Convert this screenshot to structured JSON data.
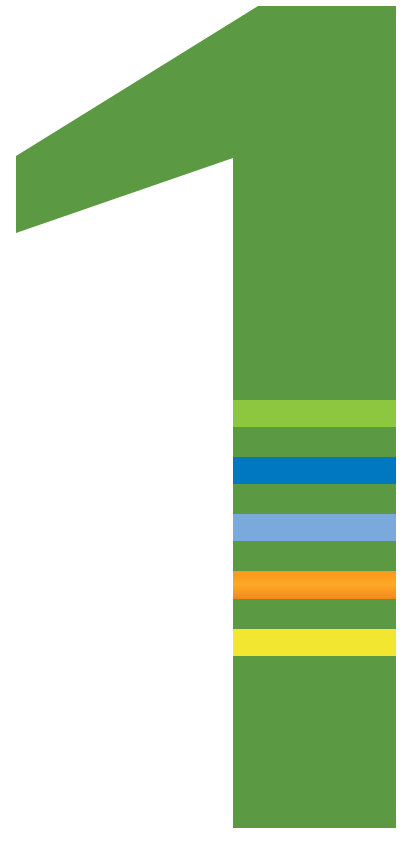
{
  "graphic": {
    "icon": "numeral-one-icon",
    "colors": {
      "background": "#ffffff",
      "numeral": "#5b9a42",
      "stripes": [
        "#8dc63f",
        "#0078c1",
        "#7aaadc",
        "#f7941d",
        "#f2e630"
      ]
    }
  }
}
